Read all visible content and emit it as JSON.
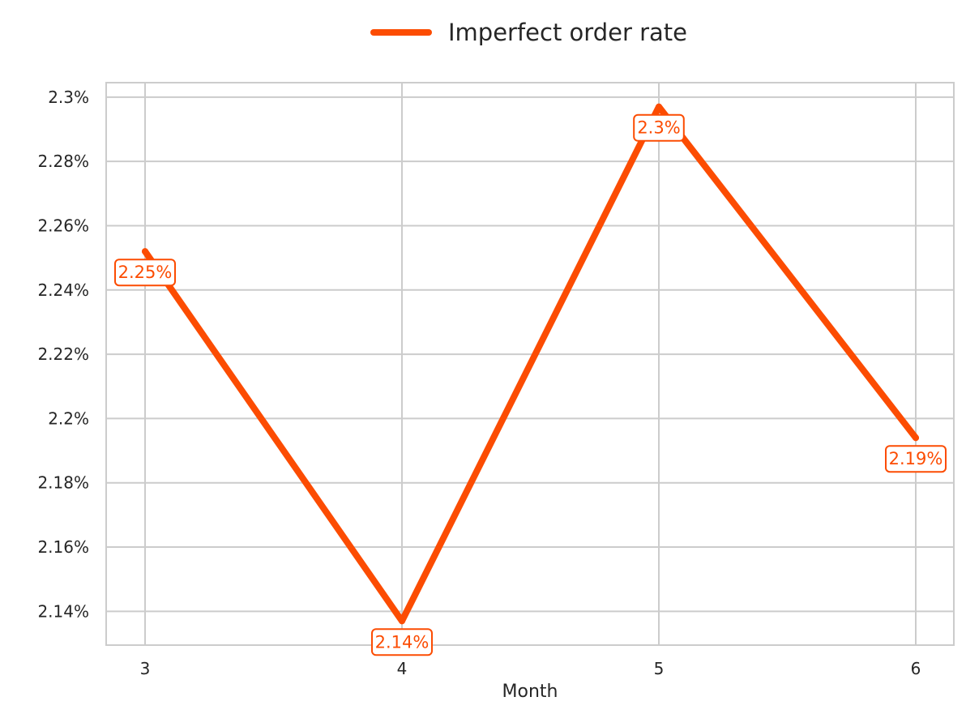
{
  "chart_data": {
    "type": "line",
    "x": [
      3,
      4,
      5,
      6
    ],
    "x_tick_labels": [
      "3",
      "4",
      "5",
      "6"
    ],
    "xlabel": "Month",
    "ylabel": "",
    "ylim": [
      2.1295,
      2.3045
    ],
    "y_ticks": [
      2.14,
      2.16,
      2.18,
      2.2,
      2.22,
      2.24,
      2.26,
      2.28,
      2.3
    ],
    "y_tick_labels": [
      "2.14%",
      "2.16%",
      "2.18%",
      "2.2%",
      "2.22%",
      "2.24%",
      "2.26%",
      "2.28%",
      "2.3%"
    ],
    "grid": true,
    "legend_position": "top-center",
    "series": [
      {
        "name": "Imperfect order rate",
        "color": "#fc4c02",
        "values": [
          2.252,
          2.137,
          2.297,
          2.194
        ],
        "data_labels": [
          "2.25%",
          "2.14%",
          "2.3%",
          "2.19%"
        ]
      }
    ]
  }
}
